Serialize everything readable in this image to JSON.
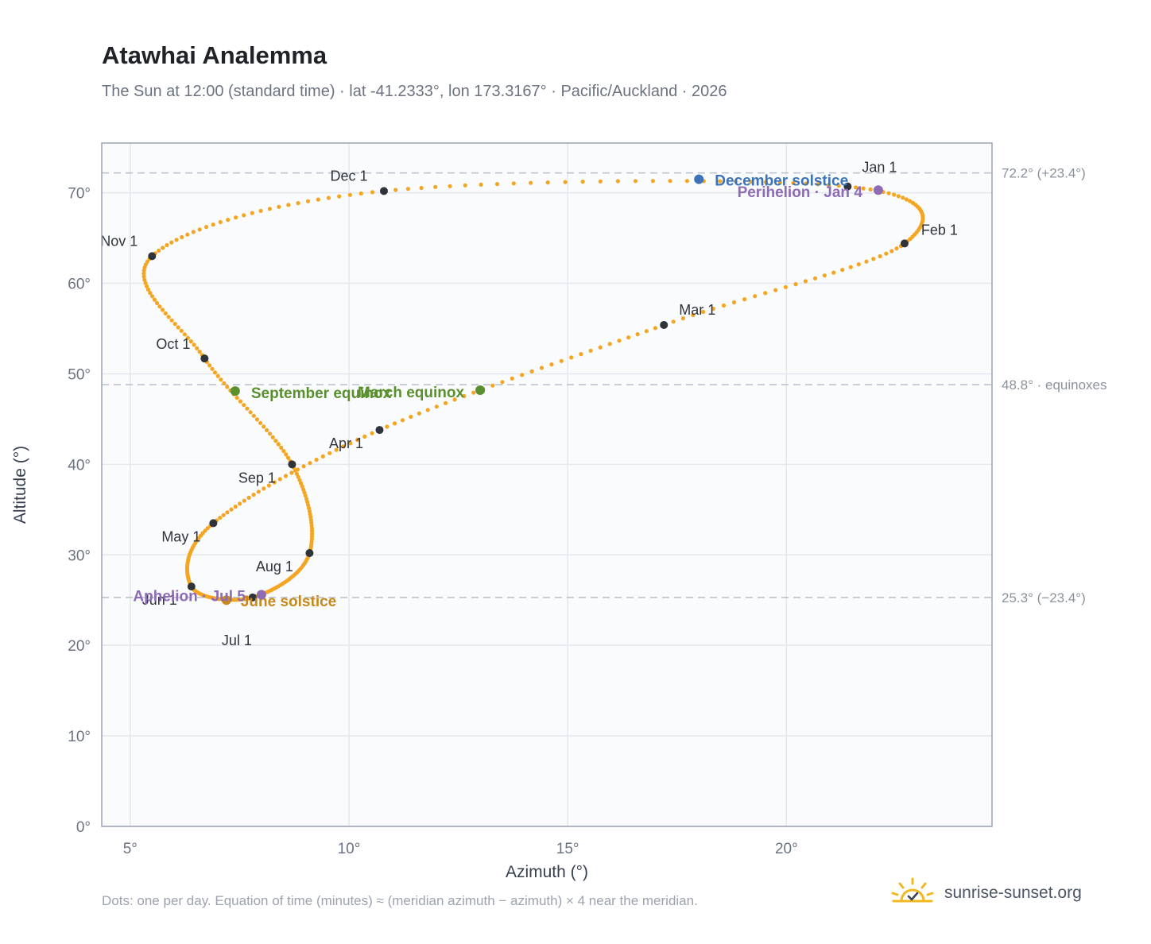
{
  "chart_data": {
    "type": "scatter",
    "title": "Atawhai Analemma",
    "subtitle": "The Sun at 12:00 (standard time) · lat -41.2333°, lon 173.3167° · Pacific/Auckland · 2026",
    "xlabel": "Azimuth (°)",
    "ylabel": "Altitude (°)",
    "xlim": [
      4.35,
      24.7
    ],
    "ylim": [
      0,
      75.5
    ],
    "x_ticks": [
      "5°",
      "10°",
      "15°",
      "20°"
    ],
    "x_tick_values": [
      5,
      10,
      15,
      20
    ],
    "y_ticks": [
      "0°",
      "10°",
      "20°",
      "30°",
      "40°",
      "50°",
      "60°",
      "70°"
    ],
    "y_tick_values": [
      0,
      10,
      20,
      30,
      40,
      50,
      60,
      70
    ],
    "grid": true,
    "reference_lines": [
      {
        "y": 72.2,
        "label": "72.2° (+23.4°)"
      },
      {
        "y": 48.8,
        "label": "48.8° · equinoxes"
      },
      {
        "y": 25.3,
        "label": "25.3° (−23.4°)"
      }
    ],
    "path_note": "one dot per day of 2026, following the monthly anchors below",
    "month_markers": [
      {
        "label": "Jan 1",
        "x": 21.4,
        "y": 70.7
      },
      {
        "label": "Feb 1",
        "x": 22.7,
        "y": 64.4
      },
      {
        "label": "Mar 1",
        "x": 17.2,
        "y": 55.4
      },
      {
        "label": "Apr 1",
        "x": 10.7,
        "y": 43.8
      },
      {
        "label": "May 1",
        "x": 6.9,
        "y": 33.5
      },
      {
        "label": "Jun 1",
        "x": 6.4,
        "y": 26.5
      },
      {
        "label": "Jul 1",
        "x": 7.8,
        "y": 25.3
      },
      {
        "label": "Aug 1",
        "x": 9.1,
        "y": 30.2
      },
      {
        "label": "Sep 1",
        "x": 8.7,
        "y": 40.0
      },
      {
        "label": "Oct 1",
        "x": 6.7,
        "y": 51.7
      },
      {
        "label": "Nov 1",
        "x": 5.5,
        "y": 63.0
      },
      {
        "label": "Dec 1",
        "x": 10.8,
        "y": 70.2
      }
    ],
    "events": [
      {
        "label": "December solstice",
        "x": 18.0,
        "y": 71.5,
        "color": "#3b73b9"
      },
      {
        "label": "Perihelion · Jan 4",
        "x": 22.1,
        "y": 70.3,
        "color": "#8e6bb5"
      },
      {
        "label": "March equinox",
        "x": 13.0,
        "y": 48.2,
        "color": "#5a8f2e"
      },
      {
        "label": "September equinox",
        "x": 7.4,
        "y": 48.1,
        "color": "#5a8f2e"
      },
      {
        "label": "June solstice",
        "x": 7.2,
        "y": 25.0,
        "color": "#c8881a"
      },
      {
        "label": "Aphelion · Jul 5",
        "x": 8.0,
        "y": 25.6,
        "color": "#8e6bb5"
      }
    ],
    "series_color": "#f4a623"
  },
  "footnote": "Dots: one per day. Equation of time (minutes) ≈ (meridian azimuth − azimuth) × 4 near the meridian.",
  "brand": {
    "name": "sunrise-sunset.org",
    "icon": "sun-horizon-icon",
    "color": "#f2b822"
  }
}
